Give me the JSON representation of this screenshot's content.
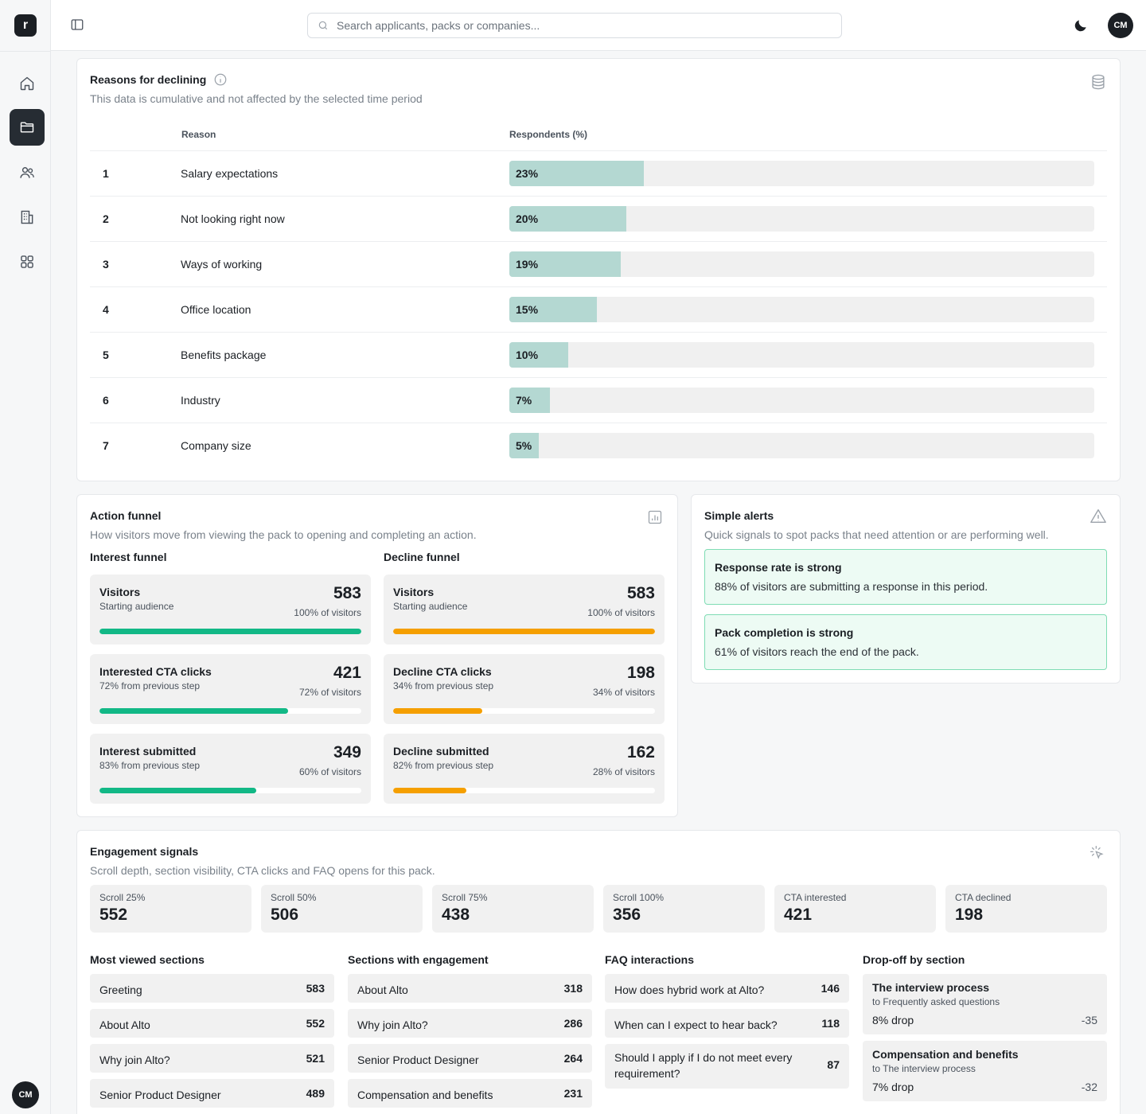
{
  "app": {
    "logo_letter": "r",
    "user_initials": "CM"
  },
  "search": {
    "placeholder": "Search applicants, packs or companies..."
  },
  "nav": [
    "home",
    "packs",
    "applicants",
    "companies",
    "apps"
  ],
  "reasons": {
    "title": "Reasons for declining",
    "subtitle": "This data is cumulative and not affected by the selected time period",
    "col_reason": "Reason",
    "col_respondents": "Respondents (%)",
    "rows": [
      {
        "rank": "1",
        "reason": "Salary expectations",
        "pct_label": "23%",
        "pct": 23
      },
      {
        "rank": "2",
        "reason": "Not looking right now",
        "pct_label": "20%",
        "pct": 20
      },
      {
        "rank": "3",
        "reason": "Ways of working",
        "pct_label": "19%",
        "pct": 19
      },
      {
        "rank": "4",
        "reason": "Office location",
        "pct_label": "15%",
        "pct": 15
      },
      {
        "rank": "5",
        "reason": "Benefits package",
        "pct_label": "10%",
        "pct": 10
      },
      {
        "rank": "6",
        "reason": "Industry",
        "pct_label": "7%",
        "pct": 7
      },
      {
        "rank": "7",
        "reason": "Company size",
        "pct_label": "5%",
        "pct": 5
      }
    ]
  },
  "funnel": {
    "title": "Action funnel",
    "subtitle": "How visitors move from viewing the pack to opening and completing an action.",
    "interest": {
      "title": "Interest funnel",
      "color": "#12b886",
      "steps": [
        {
          "name": "Visitors",
          "desc": "Starting audience",
          "value": "583",
          "of": "100% of visitors",
          "pct": 100
        },
        {
          "name": "Interested CTA clicks",
          "desc": "72% from previous step",
          "value": "421",
          "of": "72% of visitors",
          "pct": 72
        },
        {
          "name": "Interest submitted",
          "desc": "83% from previous step",
          "value": "349",
          "of": "60% of visitors",
          "pct": 60
        }
      ]
    },
    "decline": {
      "title": "Decline funnel",
      "color": "#f59f00",
      "steps": [
        {
          "name": "Visitors",
          "desc": "Starting audience",
          "value": "583",
          "of": "100% of visitors",
          "pct": 100
        },
        {
          "name": "Decline CTA clicks",
          "desc": "34% from previous step",
          "value": "198",
          "of": "34% of visitors",
          "pct": 34
        },
        {
          "name": "Decline submitted",
          "desc": "82% from previous step",
          "value": "162",
          "of": "28% of visitors",
          "pct": 28
        }
      ]
    }
  },
  "alerts": {
    "title": "Simple alerts",
    "subtitle": "Quick signals to spot packs that need attention or are performing well.",
    "items": [
      {
        "title": "Response rate is strong",
        "text": "88% of visitors are submitting a response in this period."
      },
      {
        "title": "Pack completion is strong",
        "text": "61% of visitors reach the end of the pack."
      }
    ]
  },
  "engagement": {
    "title": "Engagement signals",
    "subtitle": "Scroll depth, section visibility, CTA clicks and FAQ opens for this pack.",
    "stats": [
      {
        "label": "Scroll 25%",
        "value": "552"
      },
      {
        "label": "Scroll 50%",
        "value": "506"
      },
      {
        "label": "Scroll 75%",
        "value": "438"
      },
      {
        "label": "Scroll 100%",
        "value": "356"
      },
      {
        "label": "CTA interested",
        "value": "421"
      },
      {
        "label": "CTA declined",
        "value": "198"
      }
    ],
    "most_viewed": {
      "title": "Most viewed sections",
      "items": [
        {
          "name": "Greeting",
          "value": "583"
        },
        {
          "name": "About Alto",
          "value": "552"
        },
        {
          "name": "Why join Alto?",
          "value": "521"
        },
        {
          "name": "Senior Product Designer",
          "value": "489"
        }
      ]
    },
    "with_engagement": {
      "title": "Sections with engagement",
      "items": [
        {
          "name": "About Alto",
          "value": "318"
        },
        {
          "name": "Why join Alto?",
          "value": "286"
        },
        {
          "name": "Senior Product Designer",
          "value": "264"
        },
        {
          "name": "Compensation and benefits",
          "value": "231"
        }
      ]
    },
    "faq": {
      "title": "FAQ interactions",
      "items": [
        {
          "name": "How does hybrid work at Alto?",
          "value": "146"
        },
        {
          "name": "When can I expect to hear back?",
          "value": "118"
        },
        {
          "name": "Should I apply if I do not meet every requirement?",
          "value": "87"
        }
      ]
    },
    "dropoff": {
      "title": "Drop-off by section",
      "items": [
        {
          "name": "The interview process",
          "to": "to Frequently asked questions",
          "pct": "8% drop",
          "value": "-35"
        },
        {
          "name": "Compensation and benefits",
          "to": "to The interview process",
          "pct": "7% drop",
          "value": "-32"
        }
      ]
    }
  }
}
